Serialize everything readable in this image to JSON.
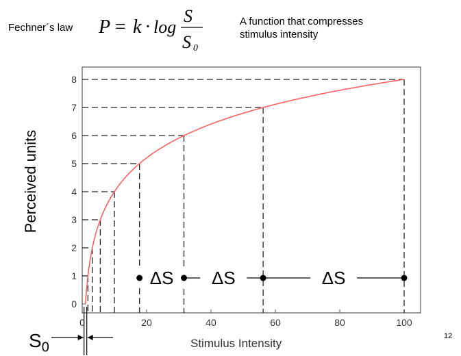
{
  "header": {
    "law_label": "Fechner´s law",
    "formula": "P = k · log S/S₀",
    "description_line1": "A function that compresses",
    "description_line2": "stimulus intensity"
  },
  "page_number": "12",
  "s0_label": "S",
  "s0_subscript": "0",
  "chart_data": {
    "type": "line",
    "title": "",
    "xlabel": "Stimulus Intensity",
    "ylabel": "Perceived units",
    "xlim": [
      0,
      105
    ],
    "ylim": [
      0,
      8.5
    ],
    "x_ticks": [
      0,
      20,
      40,
      60,
      80,
      100
    ],
    "y_ticks": [
      0,
      1,
      2,
      3,
      4,
      5,
      6,
      7,
      8
    ],
    "series": [
      {
        "name": "P = log S / S0",
        "color": "#ff6060",
        "function": "log",
        "x": [
          1,
          1.78,
          3.16,
          5.62,
          10,
          17.8,
          31.6,
          56.2,
          100
        ],
        "y": [
          0,
          1,
          2,
          3,
          4,
          5,
          6,
          7,
          8
        ]
      }
    ],
    "reference_points": [
      {
        "x": 1.78,
        "y": 1
      },
      {
        "x": 3.16,
        "y": 2
      },
      {
        "x": 5.62,
        "y": 3
      },
      {
        "x": 10,
        "y": 4
      },
      {
        "x": 17.8,
        "y": 5
      },
      {
        "x": 31.6,
        "y": 6
      },
      {
        "x": 56.2,
        "y": 7
      },
      {
        "x": 100,
        "y": 8
      }
    ],
    "delta_markers": {
      "y": 1,
      "x": [
        17.8,
        31.6,
        56.2,
        100
      ],
      "labels": [
        "ΔS",
        "ΔS",
        "ΔS"
      ]
    },
    "s0_x": 1
  }
}
